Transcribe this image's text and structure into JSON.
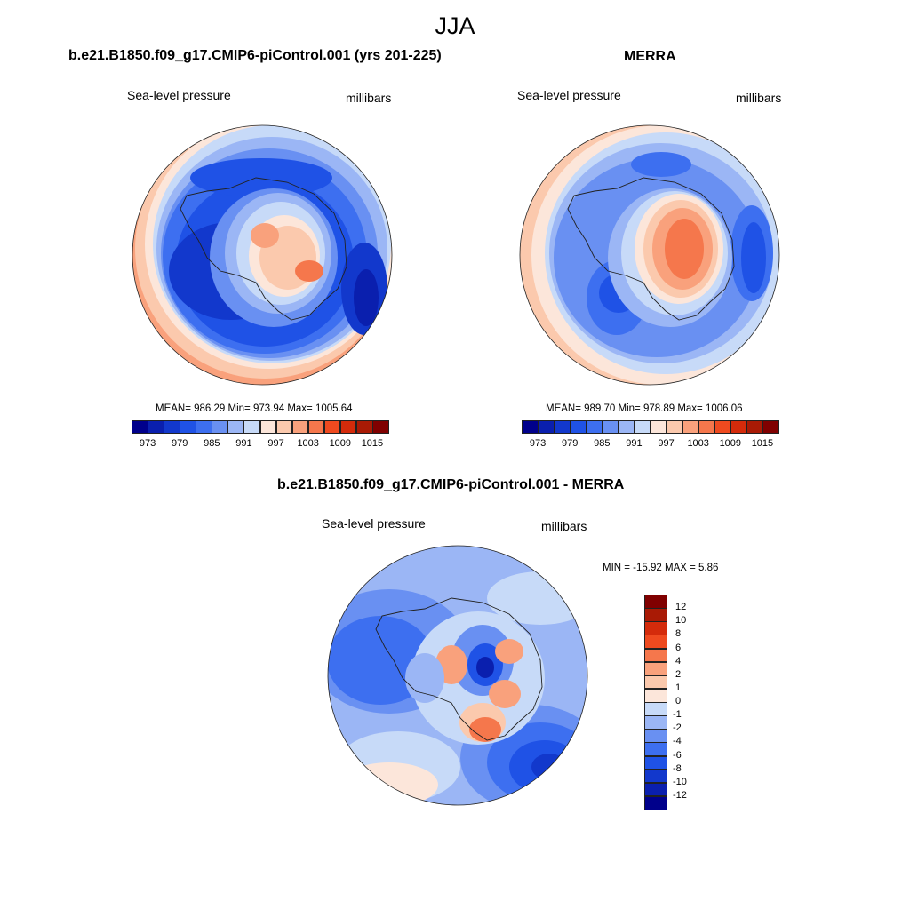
{
  "title": "JJA",
  "panels": [
    {
      "id": "model",
      "title": "b.e21.B1850.f09_g17.CMIP6-piControl.001 (yrs 201-225)",
      "left_label": "Sea-level pressure",
      "right_label": "millibars",
      "stats": "MEAN= 986.29  Min= 973.94  Max= 1005.64",
      "colorbar_ticks": [
        "973",
        "979",
        "985",
        "991",
        "997",
        "1003",
        "1009",
        "1015"
      ]
    },
    {
      "id": "merra",
      "title": "MERRA",
      "left_label": "Sea-level pressure",
      "right_label": "millibars",
      "stats": "MEAN= 989.70  Min= 978.89  Max= 1006.06",
      "colorbar_ticks": [
        "973",
        "979",
        "985",
        "991",
        "997",
        "1003",
        "1009",
        "1015"
      ]
    },
    {
      "id": "diff",
      "title": "b.e21.B1850.f09_g17.CMIP6-piControl.001 - MERRA",
      "left_label": "Sea-level pressure",
      "right_label": "millibars",
      "stats": "MIN = -15.92 MAX =   5.86",
      "colorbar_ticks": [
        "12",
        "10",
        "8",
        "6",
        "4",
        "2",
        "1",
        "0",
        "-1",
        "-2",
        "-4",
        "-6",
        "-8",
        "-10",
        "-12"
      ]
    }
  ],
  "colors": {
    "scale": [
      "#00008b",
      "#0a1fae",
      "#1238cc",
      "#1f52e6",
      "#3d6ff0",
      "#6990f2",
      "#9bb6f5",
      "#c7daf8",
      "#fce6da",
      "#fbc9ad",
      "#f9a17c",
      "#f5774c",
      "#ef4a1f",
      "#d42b0b",
      "#a91a05",
      "#800000"
    ],
    "land_outline": "#222222"
  }
}
